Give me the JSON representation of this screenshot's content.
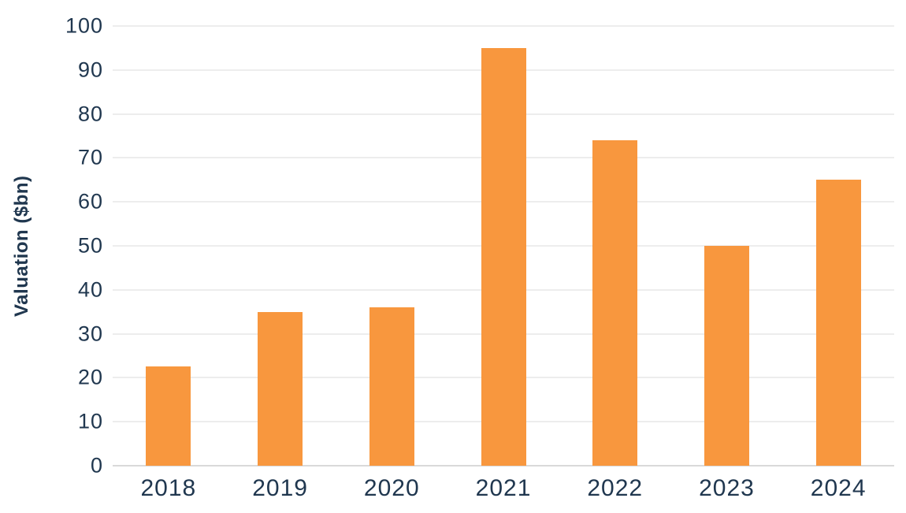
{
  "chart_data": {
    "type": "bar",
    "categories": [
      "2018",
      "2019",
      "2020",
      "2021",
      "2022",
      "2023",
      "2024"
    ],
    "values": [
      22.5,
      35,
      36,
      95,
      74,
      50,
      65
    ],
    "title": "",
    "xlabel": "",
    "ylabel": "Valuation ($bn)",
    "ylim": [
      0,
      100
    ],
    "yticks": [
      0,
      10,
      20,
      30,
      40,
      50,
      60,
      70,
      80,
      90,
      100
    ],
    "grid": true,
    "legend": null,
    "colors": {
      "bar": "#f8973e",
      "axis_text": "#20374f",
      "gridline": "#ededed",
      "baseline": "#d9d9d9",
      "background": "#ffffff"
    }
  }
}
